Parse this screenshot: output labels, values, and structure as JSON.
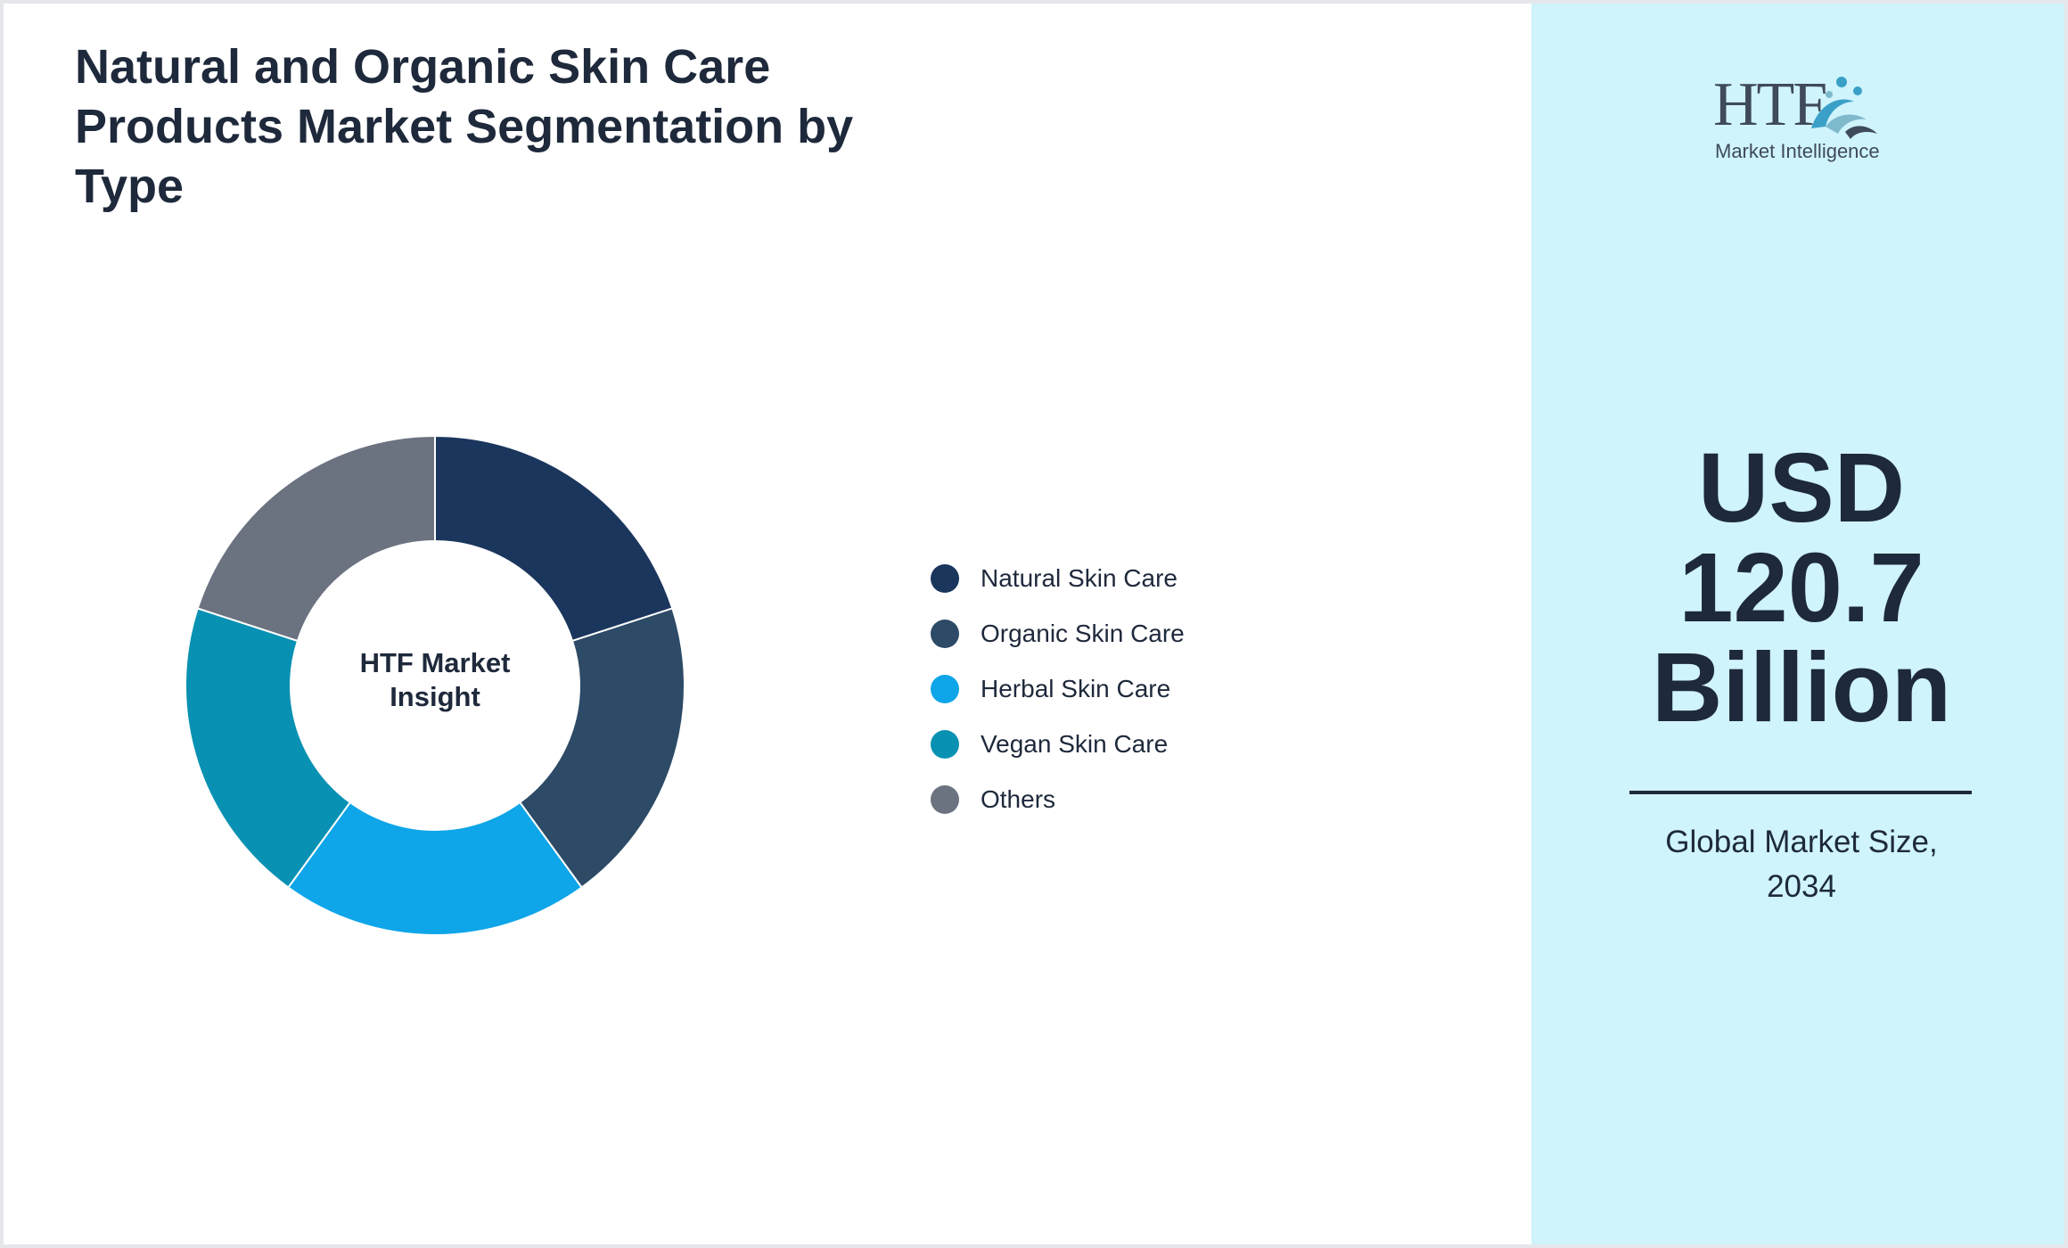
{
  "chart_data": {
    "type": "pie",
    "donut": true,
    "title": "Natural and Organic Skin Care Products Market Segmentation by Type",
    "center_label": "HTF Market Insight",
    "categories": [
      "Natural Skin Care",
      "Organic Skin Care",
      "Herbal Skin Care",
      "Vegan Skin Care",
      "Others"
    ],
    "values": [
      20,
      20,
      20,
      20,
      20
    ],
    "colors": [
      "#1b365d",
      "#2d4a66",
      "#0ea5e9",
      "#0891b2",
      "#6b7280"
    ],
    "legend_position": "right"
  },
  "sidebar": {
    "logo": {
      "mark": "HTF",
      "subtitle": "Market Intelligence"
    },
    "value_line1": "USD",
    "value_line2": "120.7",
    "value_line3": "Billion",
    "caption_line1": "Global Market Size,",
    "caption_line2": "2034",
    "background": "#cff4fc"
  }
}
